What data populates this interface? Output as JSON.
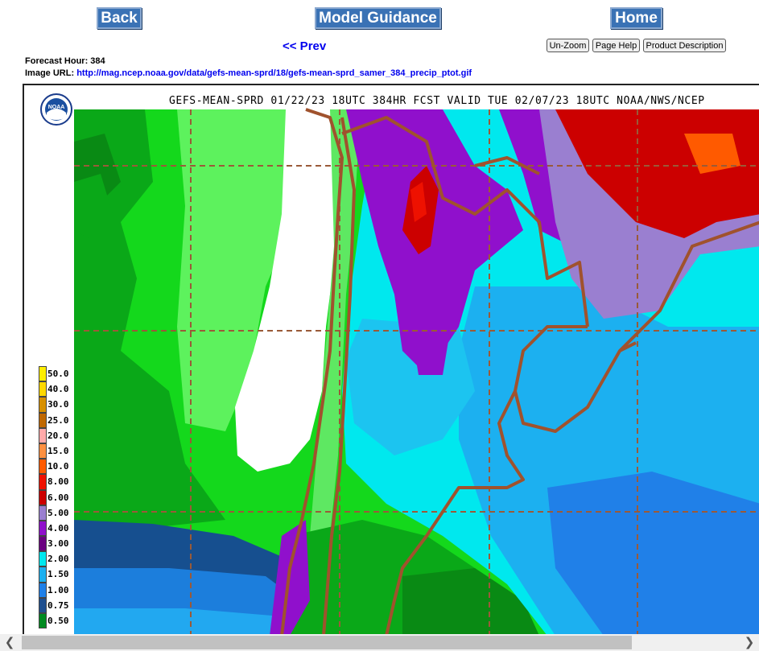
{
  "nav": {
    "back_label": "Back",
    "guidance_label": "Model Guidance",
    "home_label": "Home",
    "prev_label": "<< Prev"
  },
  "tools": {
    "unzoom_label": "Un-Zoom",
    "help_label": "Page Help",
    "desc_label": "Product Description"
  },
  "info": {
    "hour_text": "Forecast Hour: 384",
    "url_label": "Image URL:",
    "url_value": "http://mag.ncep.noaa.gov/data/gefs-mean-sprd/18/gefs-mean-sprd_samer_384_precip_ptot.gif"
  },
  "map": {
    "title": "GEFS-MEAN-SPRD 01/22/23 18UTC 384HR FCST VALID TUE 02/07/23 18UTC NOAA/NWS/NCEP",
    "logo_text": "NOAA",
    "legend": [
      {
        "label": "50.0",
        "color": "#ffee00"
      },
      {
        "label": "40.0",
        "color": "#ffd800"
      },
      {
        "label": "30.0",
        "color": "#d79000"
      },
      {
        "label": "25.0",
        "color": "#c06800"
      },
      {
        "label": "20.0",
        "color": "#ffaaaa"
      },
      {
        "label": "15.0",
        "color": "#ff9040"
      },
      {
        "label": "10.0",
        "color": "#ff5a00"
      },
      {
        "label": "8.00",
        "color": "#ee1100"
      },
      {
        "label": "6.00",
        "color": "#cc0000"
      },
      {
        "label": "5.00",
        "color": "#9a7fd0"
      },
      {
        "label": "4.00",
        "color": "#9010cc"
      },
      {
        "label": "3.00",
        "color": "#6a0080"
      },
      {
        "label": "2.00",
        "color": "#00e8ee"
      },
      {
        "label": "1.50",
        "color": "#1cb0f0"
      },
      {
        "label": "1.00",
        "color": "#2080e8"
      },
      {
        "label": "0.75",
        "color": "#1f4f8f"
      },
      {
        "label": "0.50",
        "color": "#008a20"
      }
    ]
  },
  "colors": {
    "button_bg": "#3a72b5",
    "link": "#0000ee",
    "border_line": "#a0522d",
    "grid_line": "#9a5a38"
  }
}
